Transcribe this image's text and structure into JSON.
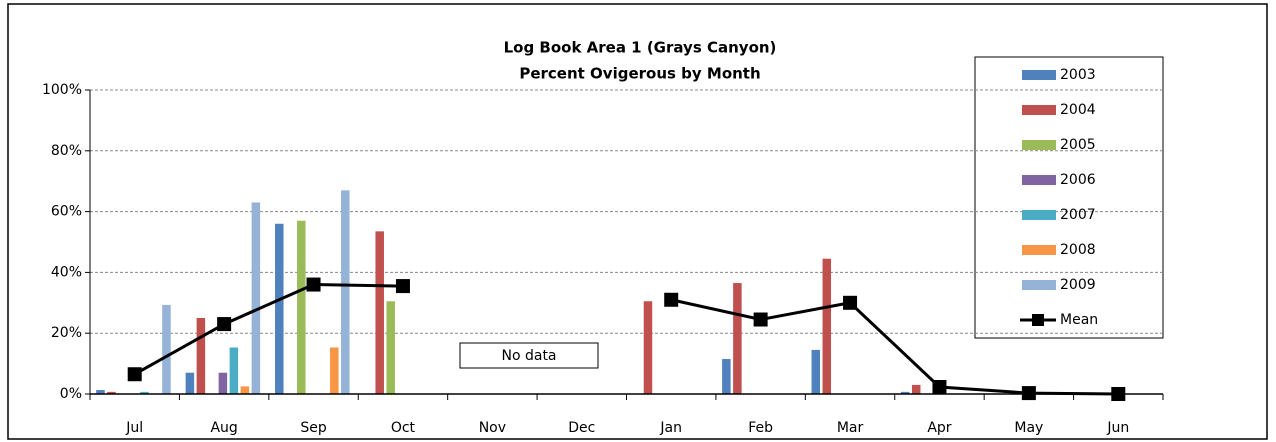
{
  "chart_data": {
    "type": "bar",
    "title": "Log Book Area 1 (Grays Canyon)",
    "subtitle": "Percent Ovigerous by Month",
    "categories": [
      "Jul",
      "Aug",
      "Sep",
      "Oct",
      "Nov",
      "Dec",
      "Jan",
      "Feb",
      "Mar",
      "Apr",
      "May",
      "Jun"
    ],
    "series": [
      {
        "name": "2003",
        "color": "#4f81bd",
        "values": [
          1.3,
          7,
          56,
          null,
          null,
          null,
          null,
          11.5,
          14.5,
          0.7,
          null,
          null
        ]
      },
      {
        "name": "2004",
        "color": "#c0504d",
        "values": [
          0.7,
          25,
          null,
          53.5,
          null,
          null,
          30.5,
          36.5,
          44.5,
          3,
          null,
          null
        ]
      },
      {
        "name": "2005",
        "color": "#9bbb59",
        "values": [
          null,
          null,
          57,
          30.5,
          null,
          null,
          null,
          null,
          null,
          null,
          null,
          null
        ]
      },
      {
        "name": "2006",
        "color": "#8064a2",
        "values": [
          null,
          7,
          null,
          null,
          null,
          null,
          null,
          null,
          null,
          null,
          null,
          null
        ]
      },
      {
        "name": "2007",
        "color": "#4bacc6",
        "values": [
          0.7,
          15.3,
          null,
          null,
          null,
          null,
          null,
          null,
          null,
          null,
          null,
          null
        ]
      },
      {
        "name": "2008",
        "color": "#f79646",
        "values": [
          null,
          2.5,
          15.3,
          null,
          null,
          null,
          null,
          null,
          null,
          null,
          null,
          null
        ]
      },
      {
        "name": "2009",
        "color": "#95b3d7",
        "values": [
          29.3,
          63,
          67,
          null,
          null,
          null,
          null,
          null,
          null,
          null,
          null,
          null
        ]
      },
      {
        "name": "Mean",
        "type": "line",
        "color": "#000000",
        "values": [
          6.5,
          23,
          36,
          35.5,
          null,
          null,
          31,
          24.5,
          30,
          2.3,
          0.3,
          0
        ]
      }
    ],
    "ylim": [
      0,
      100
    ],
    "yticks": [
      {
        "value": 0,
        "label": "0%"
      },
      {
        "value": 20,
        "label": "20%"
      },
      {
        "value": 40,
        "label": "40%"
      },
      {
        "value": 60,
        "label": "60%"
      },
      {
        "value": 80,
        "label": "80%"
      },
      {
        "value": 100,
        "label": "100%"
      }
    ],
    "grid": true,
    "legend": "right",
    "annotations": [
      "No data"
    ]
  }
}
